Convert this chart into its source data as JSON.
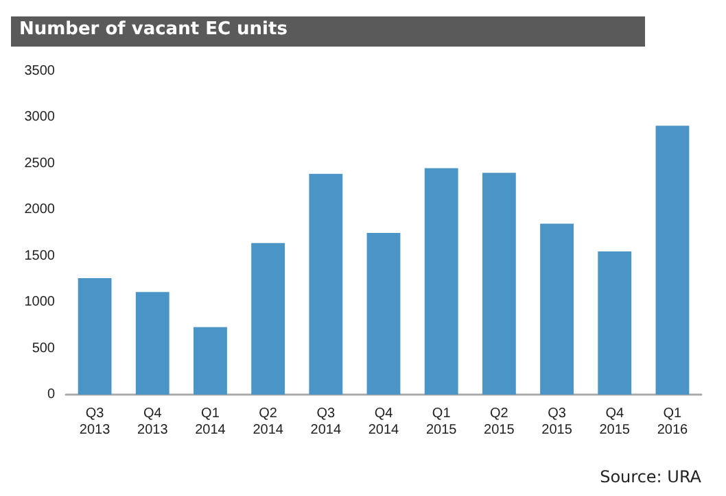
{
  "chart_data": {
    "type": "bar",
    "title": "Number of vacant EC units",
    "categories": [
      "Q3 2013",
      "Q4 2013",
      "Q1 2014",
      "Q2 2014",
      "Q3 2014",
      "Q4 2014",
      "Q1 2015",
      "Q2 2015",
      "Q3 2015",
      "Q4 2015",
      "Q1 2016"
    ],
    "values": [
      1260,
      1110,
      730,
      1640,
      2390,
      1750,
      2450,
      2400,
      1850,
      1550,
      2910
    ],
    "color": "#4a94c6",
    "ylim": [
      0,
      3500
    ],
    "yticks": [
      0,
      500,
      1000,
      1500,
      2000,
      2500,
      3000,
      3500
    ],
    "grid": false,
    "annotations": [
      "Source: URA"
    ]
  }
}
